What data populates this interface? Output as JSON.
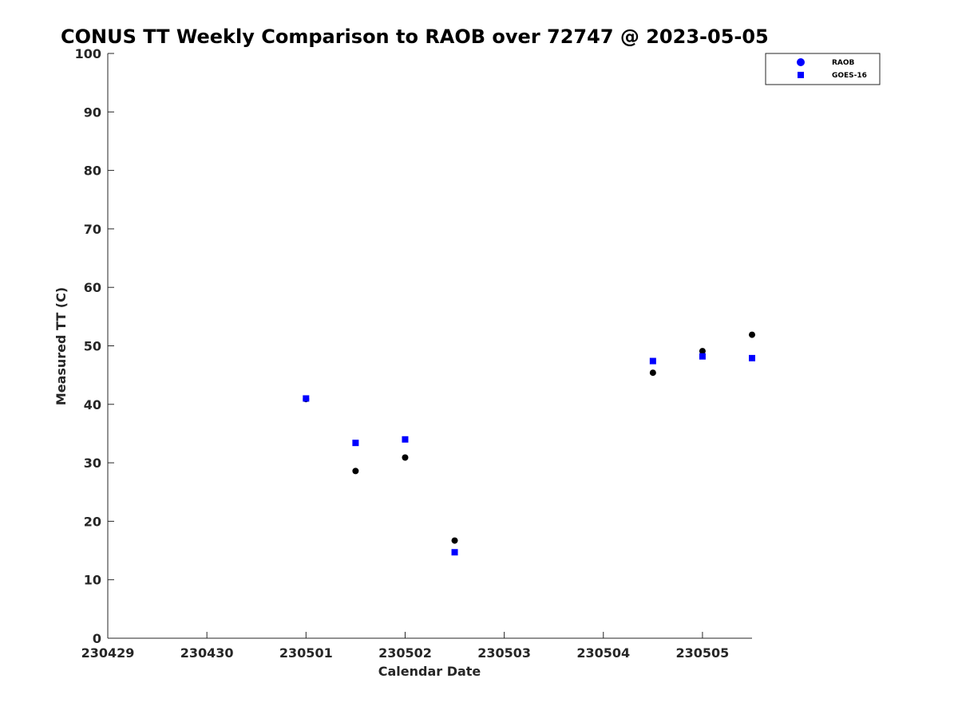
{
  "chart_data": {
    "type": "scatter",
    "title": "CONUS TT Weekly Comparison to RAOB over 72747 @ 2023-05-05",
    "xlabel": "Calendar Date",
    "ylabel": "Measured TT (C)",
    "x_tick_labels": [
      "230429",
      "230430",
      "230501",
      "230502",
      "230503",
      "230504",
      "230505"
    ],
    "y_tick_labels": [
      "0",
      "10",
      "20",
      "30",
      "40",
      "50",
      "60",
      "70",
      "80",
      "90",
      "100"
    ],
    "xlim": [
      "2023-04-29",
      "2023-05-05T12:00"
    ],
    "ylim": [
      0,
      100
    ],
    "grid": false,
    "legend_position": "top-right",
    "series": [
      {
        "name": "RAOB",
        "marker": "circle",
        "color": "#000000",
        "legend_color": "#0000ff",
        "points": [
          {
            "x": "2023-05-01T00:00",
            "y": 40.9
          },
          {
            "x": "2023-05-01T12:00",
            "y": 28.6
          },
          {
            "x": "2023-05-02T00:00",
            "y": 30.9
          },
          {
            "x": "2023-05-02T12:00",
            "y": 16.7
          },
          {
            "x": "2023-05-04T12:00",
            "y": 45.4
          },
          {
            "x": "2023-05-05T00:00",
            "y": 49.1
          },
          {
            "x": "2023-05-05T12:00",
            "y": 51.9
          }
        ]
      },
      {
        "name": "GOES-16",
        "marker": "square",
        "color": "#0000ff",
        "legend_color": "#0000ff",
        "points": [
          {
            "x": "2023-05-01T00:00",
            "y": 41.0
          },
          {
            "x": "2023-05-01T12:00",
            "y": 33.4
          },
          {
            "x": "2023-05-02T00:00",
            "y": 34.0
          },
          {
            "x": "2023-05-02T12:00",
            "y": 14.7
          },
          {
            "x": "2023-05-04T12:00",
            "y": 47.4
          },
          {
            "x": "2023-05-05T00:00",
            "y": 48.2
          },
          {
            "x": "2023-05-05T12:00",
            "y": 47.9
          }
        ]
      }
    ]
  }
}
